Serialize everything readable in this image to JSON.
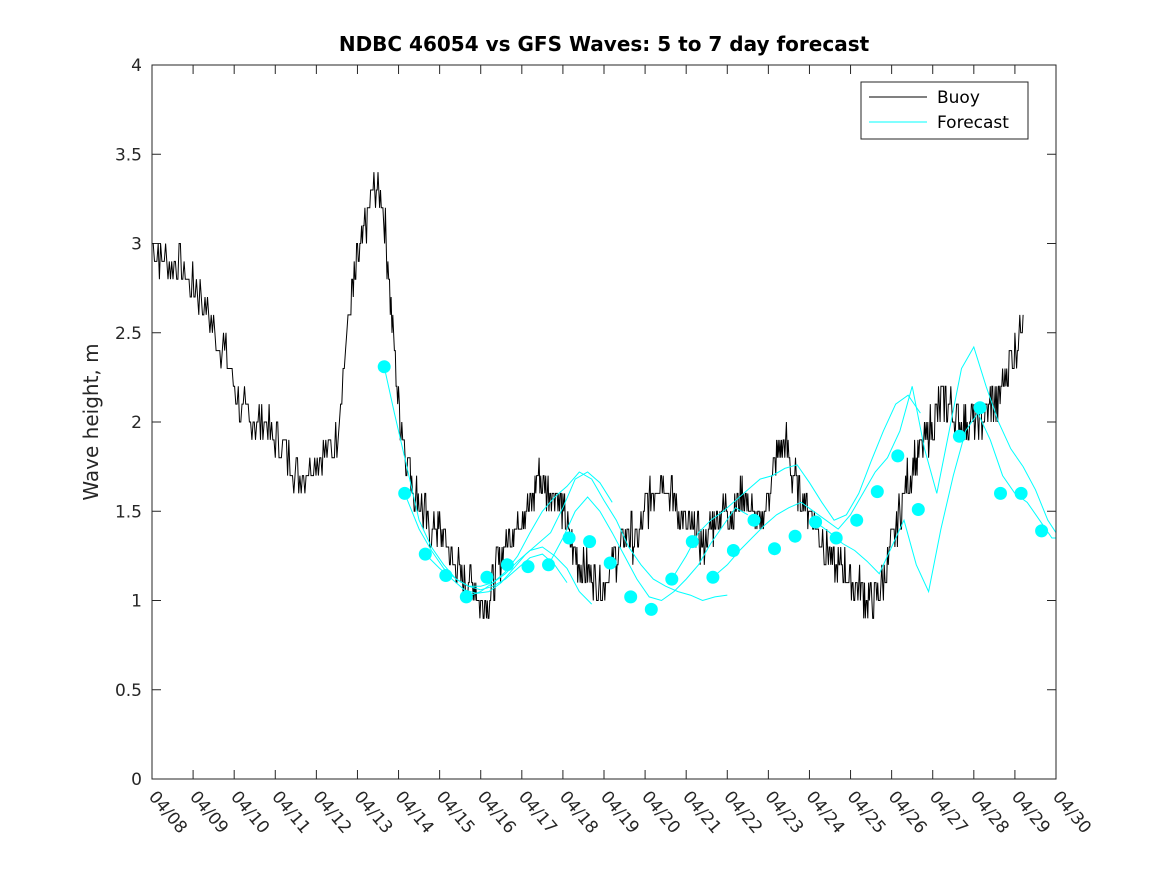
{
  "chart_data": {
    "type": "line",
    "title": "NDBC 46054 vs GFS Waves: 5 to 7 day forecast",
    "xlabel": "",
    "ylabel": "Wave height, m",
    "xlim": [
      "04/08",
      "04/30"
    ],
    "ylim": [
      0,
      4
    ],
    "x_ticks": [
      "04/08",
      "04/09",
      "04/10",
      "04/11",
      "04/12",
      "04/13",
      "04/14",
      "04/15",
      "04/16",
      "04/17",
      "04/18",
      "04/19",
      "04/20",
      "04/21",
      "04/22",
      "04/23",
      "04/24",
      "04/25",
      "04/26",
      "04/27",
      "04/28",
      "04/29",
      "04/30"
    ],
    "y_ticks": [
      "0",
      "0.5",
      "1",
      "1.5",
      "2",
      "2.5",
      "3",
      "3.5",
      "4"
    ],
    "grid": false,
    "legend": {
      "position": "top-right",
      "entries": [
        "Buoy",
        "Forecast"
      ]
    },
    "colors": {
      "buoy": "#000000",
      "forecast": "#00FFFF"
    },
    "series": [
      {
        "name": "Buoy",
        "x_days_from_0408": [
          0,
          0.3,
          0.6,
          0.9,
          1.2,
          1.5,
          1.8,
          2.1,
          2.4,
          2.7,
          3.0,
          3.3,
          3.6,
          3.9,
          4.2,
          4.5,
          4.8,
          5.0,
          5.2,
          5.4,
          5.6,
          5.8,
          6.0,
          6.2,
          6.4,
          6.6,
          6.8,
          7.0,
          7.2,
          7.4,
          7.6,
          7.8,
          8.0,
          8.2,
          8.4,
          8.6,
          8.8,
          9.0,
          9.2,
          9.4,
          9.6,
          9.8,
          10.0,
          10.2,
          10.4,
          10.6,
          10.8,
          11.0,
          11.2,
          11.4,
          11.6,
          11.8,
          12.0,
          12.2,
          12.4,
          12.6,
          12.8,
          13.0,
          13.2,
          13.4,
          13.6,
          13.8,
          14.0,
          14.2,
          14.4,
          14.6,
          14.8,
          15.0,
          15.2,
          15.4,
          15.6,
          15.8,
          16.0,
          16.2,
          16.4,
          16.6,
          16.8,
          17.0,
          17.2,
          17.4,
          17.6,
          17.8,
          18.0,
          18.2,
          18.4,
          18.6,
          18.8,
          19.0,
          19.2,
          19.4,
          19.6,
          19.8,
          20.0,
          20.2,
          20.4,
          20.6,
          20.8,
          21.0,
          21.2
        ],
        "values": [
          3.0,
          2.9,
          2.9,
          2.8,
          2.7,
          2.5,
          2.4,
          2.1,
          2.0,
          2.0,
          1.9,
          1.8,
          1.7,
          1.8,
          1.8,
          1.9,
          2.6,
          2.9,
          3.1,
          3.3,
          3.3,
          2.7,
          2.1,
          1.8,
          1.6,
          1.5,
          1.4,
          1.4,
          1.3,
          1.2,
          1.1,
          1.1,
          1.0,
          1.0,
          1.2,
          1.3,
          1.4,
          1.5,
          1.5,
          1.7,
          1.6,
          1.6,
          1.5,
          1.3,
          1.2,
          1.2,
          1.1,
          1.1,
          1.2,
          1.3,
          1.4,
          1.3,
          1.5,
          1.6,
          1.7,
          1.6,
          1.5,
          1.4,
          1.4,
          1.3,
          1.4,
          1.5,
          1.5,
          1.5,
          1.6,
          1.5,
          1.4,
          1.6,
          1.8,
          1.9,
          1.7,
          1.6,
          1.5,
          1.4,
          1.3,
          1.2,
          1.2,
          1.1,
          1.1,
          1.0,
          1.0,
          1.1,
          1.3,
          1.5,
          1.7,
          1.8,
          1.9,
          2.0,
          2.1,
          2.1,
          2.0,
          2.0,
          2.0,
          2.0,
          2.1,
          2.1,
          2.3,
          2.4,
          2.6
        ]
      },
      {
        "name": "Forecast",
        "dots": [
          {
            "x": 5.65,
            "y": 2.31
          },
          {
            "x": 6.15,
            "y": 1.6
          },
          {
            "x": 6.65,
            "y": 1.26
          },
          {
            "x": 7.15,
            "y": 1.14
          },
          {
            "x": 7.65,
            "y": 1.02
          },
          {
            "x": 8.15,
            "y": 1.13
          },
          {
            "x": 8.65,
            "y": 1.2
          },
          {
            "x": 9.15,
            "y": 1.19
          },
          {
            "x": 9.65,
            "y": 1.2
          },
          {
            "x": 10.15,
            "y": 1.35
          },
          {
            "x": 10.65,
            "y": 1.33
          },
          {
            "x": 11.15,
            "y": 1.21
          },
          {
            "x": 11.65,
            "y": 1.02
          },
          {
            "x": 12.15,
            "y": 0.95
          },
          {
            "x": 12.65,
            "y": 1.12
          },
          {
            "x": 13.15,
            "y": 1.33
          },
          {
            "x": 13.65,
            "y": 1.13
          },
          {
            "x": 14.15,
            "y": 1.28
          },
          {
            "x": 14.65,
            "y": 1.45
          },
          {
            "x": 15.15,
            "y": 1.29
          },
          {
            "x": 15.65,
            "y": 1.36
          },
          {
            "x": 16.15,
            "y": 1.44
          },
          {
            "x": 16.65,
            "y": 1.35
          },
          {
            "x": 17.15,
            "y": 1.45
          },
          {
            "x": 17.65,
            "y": 1.61
          },
          {
            "x": 18.15,
            "y": 1.81
          },
          {
            "x": 18.65,
            "y": 1.51
          },
          {
            "x": 19.65,
            "y": 1.92
          },
          {
            "x": 20.15,
            "y": 2.08
          },
          {
            "x": 20.65,
            "y": 1.6
          },
          {
            "x": 21.15,
            "y": 1.6
          },
          {
            "x": 21.65,
            "y": 1.39
          }
        ],
        "traces": [
          {
            "x": [
              5.65,
              5.9,
              6.2,
              6.5,
              6.8,
              7.1,
              7.4,
              7.7,
              8.0,
              8.3,
              8.6,
              8.9,
              9.2,
              9.5,
              9.8,
              10.1
            ],
            "y": [
              2.31,
              2.05,
              1.75,
              1.45,
              1.3,
              1.2,
              1.12,
              1.08,
              1.06,
              1.08,
              1.12,
              1.18,
              1.24,
              1.26,
              1.2,
              1.1
            ]
          },
          {
            "x": [
              6.15,
              6.5,
              6.8,
              7.1,
              7.4,
              7.7,
              8.0,
              8.3,
              8.6,
              8.9,
              9.2,
              9.5,
              9.8,
              10.1,
              10.4,
              10.7
            ],
            "y": [
              1.6,
              1.4,
              1.28,
              1.18,
              1.12,
              1.08,
              1.08,
              1.1,
              1.15,
              1.22,
              1.28,
              1.3,
              1.25,
              1.18,
              1.05,
              0.98
            ]
          },
          {
            "x": [
              6.65,
              7.0,
              7.3,
              7.6,
              7.9,
              8.2,
              8.5,
              8.8,
              9.1,
              9.4,
              9.7,
              10.0,
              10.3,
              10.6,
              10.9,
              11.2
            ],
            "y": [
              1.26,
              1.18,
              1.12,
              1.06,
              1.04,
              1.05,
              1.1,
              1.18,
              1.26,
              1.32,
              1.38,
              1.52,
              1.68,
              1.72,
              1.66,
              1.55
            ]
          },
          {
            "x": [
              7.65,
              8.0,
              8.3,
              8.6,
              8.9,
              9.2,
              9.5,
              9.8,
              10.1,
              10.4,
              10.7,
              11.0,
              11.3,
              11.6,
              11.9,
              12.2,
              12.5,
              12.8,
              13.1,
              13.4,
              13.7,
              14.0
            ],
            "y": [
              1.02,
              1.05,
              1.1,
              1.16,
              1.25,
              1.38,
              1.5,
              1.58,
              1.64,
              1.72,
              1.68,
              1.56,
              1.45,
              1.3,
              1.2,
              1.12,
              1.08,
              1.05,
              1.03,
              1.0,
              1.02,
              1.03
            ]
          },
          {
            "x": [
              9.65,
              10.0,
              10.3,
              10.6,
              10.9,
              11.2,
              11.5,
              11.8,
              12.1,
              12.4,
              12.7,
              13.0,
              13.3,
              13.6,
              13.9,
              14.2,
              14.5
            ],
            "y": [
              1.2,
              1.35,
              1.5,
              1.58,
              1.5,
              1.38,
              1.25,
              1.12,
              1.02,
              1.0,
              1.05,
              1.12,
              1.2,
              1.32,
              1.42,
              1.52,
              1.48
            ]
          },
          {
            "x": [
              12.65,
              13.0,
              13.3,
              13.6,
              13.9,
              14.2,
              14.5,
              14.8,
              15.1,
              15.4,
              15.7,
              16.0,
              16.3,
              16.6,
              16.9,
              17.2,
              17.5,
              17.8,
              18.1,
              18.4,
              18.7
            ],
            "y": [
              1.12,
              1.25,
              1.38,
              1.45,
              1.5,
              1.56,
              1.62,
              1.68,
              1.7,
              1.74,
              1.76,
              1.66,
              1.55,
              1.45,
              1.48,
              1.6,
              1.78,
              1.95,
              2.1,
              2.15,
              2.05
            ]
          },
          {
            "x": [
              13.65,
              14.0,
              14.3,
              14.6,
              14.9,
              15.2,
              15.5,
              15.8,
              16.1,
              16.4,
              16.7,
              17.0,
              17.3,
              17.6,
              17.9,
              18.2,
              18.5,
              18.8,
              19.1,
              19.4,
              19.7,
              20.0,
              20.3,
              20.6,
              20.9,
              21.2,
              21.5,
              21.8,
              22.0
            ],
            "y": [
              1.13,
              1.2,
              1.28,
              1.35,
              1.42,
              1.48,
              1.52,
              1.55,
              1.5,
              1.45,
              1.4,
              1.48,
              1.6,
              1.72,
              1.8,
              1.95,
              2.2,
              1.85,
              1.6,
              1.95,
              2.3,
              2.42,
              2.2,
              2.0,
              1.85,
              1.75,
              1.62,
              1.45,
              1.38
            ]
          },
          {
            "x": [
              16.15,
              16.5,
              16.8,
              17.1,
              17.4,
              17.7,
              18.0,
              18.3,
              18.6,
              18.9,
              19.2,
              19.5,
              19.8,
              20.1,
              20.4,
              20.7,
              21.0,
              21.3,
              21.6,
              21.9,
              22.0
            ],
            "y": [
              1.44,
              1.38,
              1.32,
              1.28,
              1.22,
              1.15,
              1.3,
              1.45,
              1.2,
              1.05,
              1.4,
              1.7,
              1.95,
              2.05,
              1.9,
              1.7,
              1.6,
              1.55,
              1.45,
              1.35,
              1.35
            ]
          }
        ]
      }
    ]
  }
}
